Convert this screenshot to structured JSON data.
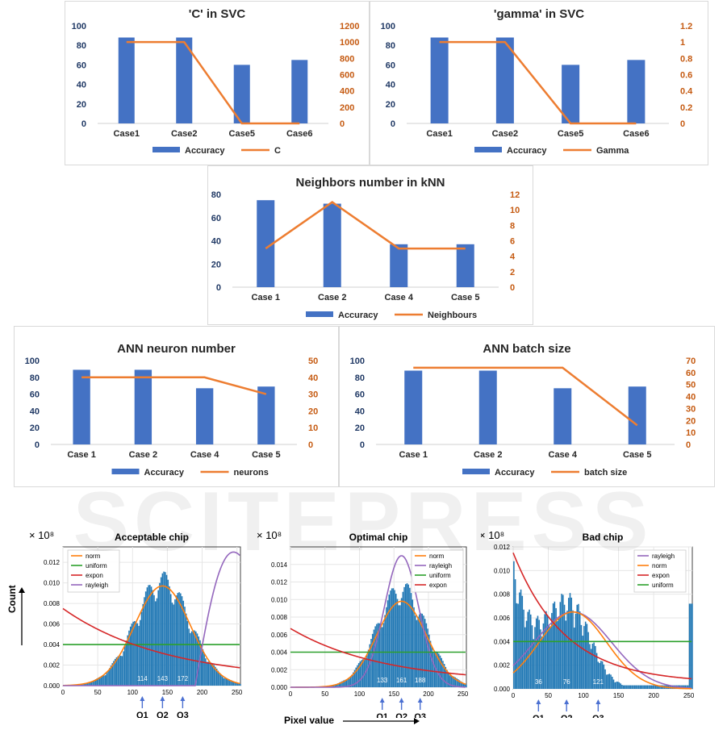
{
  "colors": {
    "bar": "#4472C4",
    "line": "#ED7D31",
    "left_axis": "#1F3864",
    "right_axis": "#C55A11",
    "hist": "#1f77b4"
  },
  "watermark": "SCITEPRESS",
  "common": {
    "count_label": "Count",
    "pixel_label": "Pixel value",
    "exp_label": "× 10⁸"
  },
  "chart_data": [
    {
      "type": "bar",
      "title": "'C' in SVC",
      "categories": [
        "Case1",
        "Case2",
        "Case5",
        "Case6"
      ],
      "series": [
        {
          "name": "Accuracy",
          "values": [
            88,
            88,
            60,
            65
          ],
          "axis": "left"
        },
        {
          "name": "C",
          "values": [
            1000,
            1000,
            0,
            0
          ],
          "axis": "right",
          "type": "line"
        }
      ],
      "ylim": [
        0,
        100
      ],
      "yticks": [
        0,
        20,
        40,
        60,
        80,
        100
      ],
      "y2lim": [
        0,
        1200
      ],
      "y2ticks": [
        0,
        200,
        400,
        600,
        800,
        1000,
        1200
      ]
    },
    {
      "type": "bar",
      "title": "'gamma' in SVC",
      "categories": [
        "Case1",
        "Case2",
        "Case5",
        "Case6"
      ],
      "series": [
        {
          "name": "Accuracy",
          "values": [
            88,
            88,
            60,
            65
          ],
          "axis": "left"
        },
        {
          "name": "Gamma",
          "values": [
            1,
            1,
            0,
            0
          ],
          "axis": "right",
          "type": "line"
        }
      ],
      "ylim": [
        0,
        100
      ],
      "yticks": [
        0,
        20,
        40,
        60,
        80,
        100
      ],
      "y2lim": [
        0,
        1.2
      ],
      "y2ticks": [
        "0",
        "0.2",
        "0.4",
        "0.6",
        "0.8",
        "1",
        "1.2"
      ]
    },
    {
      "type": "bar",
      "title": "Neighbors number in kNN",
      "categories": [
        "Case 1",
        "Case 2",
        "Case 4",
        "Case 5"
      ],
      "series": [
        {
          "name": "Accuracy",
          "values": [
            75,
            72,
            37,
            37
          ],
          "axis": "left"
        },
        {
          "name": "Neighbours",
          "values": [
            5,
            11,
            5,
            5
          ],
          "axis": "right",
          "type": "line"
        }
      ],
      "ylim": [
        0,
        80
      ],
      "yticks": [
        0,
        20,
        40,
        60,
        80
      ],
      "y2lim": [
        0,
        12
      ],
      "y2ticks": [
        0,
        2,
        4,
        6,
        8,
        10,
        12
      ]
    },
    {
      "type": "bar",
      "title": "ANN neuron number",
      "categories": [
        "Case 1",
        "Case 2",
        "Case 4",
        "Case 5"
      ],
      "series": [
        {
          "name": "Accuracy",
          "values": [
            89,
            89,
            67,
            69
          ],
          "axis": "left"
        },
        {
          "name": "neurons",
          "values": [
            40,
            40,
            40,
            30
          ],
          "axis": "right",
          "type": "line"
        }
      ],
      "ylim": [
        0,
        100
      ],
      "yticks": [
        0,
        20,
        40,
        60,
        80,
        100
      ],
      "y2lim": [
        0,
        50
      ],
      "y2ticks": [
        0,
        10,
        20,
        30,
        40,
        50
      ]
    },
    {
      "type": "bar",
      "title": "ANN batch size",
      "categories": [
        "Case 1",
        "Case 2",
        "Case 4",
        "Case 5"
      ],
      "series": [
        {
          "name": "Accuracy",
          "values": [
            88,
            88,
            67,
            69
          ],
          "axis": "left"
        },
        {
          "name": "batch size",
          "values": [
            64,
            64,
            64,
            16
          ],
          "axis": "right",
          "type": "line"
        }
      ],
      "ylim": [
        0,
        100
      ],
      "yticks": [
        0,
        20,
        40,
        60,
        80,
        100
      ],
      "y2lim": [
        0,
        70
      ],
      "y2ticks": [
        0,
        10,
        20,
        30,
        40,
        50,
        60,
        70
      ]
    },
    {
      "type": "area",
      "title": "Acceptable chip",
      "xlim": [
        0,
        255
      ],
      "ylim": [
        0,
        0.0135
      ],
      "xticks": [
        0,
        50,
        100,
        150,
        200,
        250
      ],
      "yticks": [
        "0.000",
        "0.002",
        "0.004",
        "0.006",
        "0.008",
        "0.010",
        "0.012"
      ],
      "legend": [
        "norm",
        "uniform",
        "expon",
        "rayleigh"
      ],
      "quartiles": [
        {
          "label": "Q1",
          "value": 114
        },
        {
          "label": "Q2",
          "value": 143
        },
        {
          "label": "Q3",
          "value": 172
        }
      ],
      "hist": {
        "type": "norm",
        "mean": 143,
        "sd": 40,
        "peak": 0.0105
      },
      "curves": [
        {
          "name": "norm",
          "kind": "norm",
          "mean": 143,
          "sd": 40,
          "peak": 0.0097
        },
        {
          "name": "uniform",
          "kind": "const",
          "value": 0.004
        },
        {
          "name": "expon",
          "kind": "exp",
          "a": 0.007,
          "b": 0.0068
        },
        {
          "name": "rayleigh",
          "kind": "ray",
          "start": 190,
          "peak": 0.013,
          "peakx": 245
        }
      ]
    },
    {
      "type": "area",
      "title": "Optimal chip",
      "xlim": [
        0,
        255
      ],
      "ylim": [
        0,
        0.016
      ],
      "xticks": [
        0,
        50,
        100,
        150,
        200,
        250
      ],
      "yticks": [
        "0.000",
        "0.002",
        "0.004",
        "0.006",
        "0.008",
        "0.010",
        "0.012",
        "0.014"
      ],
      "legend": [
        "norm",
        "rayleigh",
        "uniform",
        "expon"
      ],
      "quartiles": [
        {
          "label": "Q1",
          "value": 133
        },
        {
          "label": "Q2",
          "value": 161
        },
        {
          "label": "Q3",
          "value": 188
        }
      ],
      "hist": {
        "type": "norm",
        "mean": 161,
        "sd": 36,
        "peak": 0.0115
      },
      "curves": [
        {
          "name": "norm",
          "kind": "norm",
          "mean": 161,
          "sd": 36,
          "peak": 0.0098
        },
        {
          "name": "rayleigh",
          "kind": "norm",
          "mean": 161,
          "sd": 25,
          "peak": 0.015
        },
        {
          "name": "uniform",
          "kind": "const",
          "value": 0.004
        },
        {
          "name": "expon",
          "kind": "exp",
          "a": 0.0062,
          "b": 0.0075
        }
      ]
    },
    {
      "type": "area",
      "title": "Bad chip",
      "xlim": [
        0,
        255
      ],
      "ylim": [
        0,
        0.012
      ],
      "xticks": [
        0,
        50,
        100,
        150,
        200,
        250
      ],
      "yticks": [
        "0.000",
        "0.002",
        "0.004",
        "0.006",
        "0.008",
        "0.010",
        "0.012"
      ],
      "legend": [
        "rayleigh",
        "norm",
        "expon",
        "uniform"
      ],
      "quartiles": [
        {
          "label": "Q1",
          "value": 36
        },
        {
          "label": "Q2",
          "value": 76
        },
        {
          "label": "Q3",
          "value": 121
        }
      ],
      "hist": {
        "type": "bad"
      },
      "curves": [
        {
          "name": "rayleigh",
          "kind": "norm",
          "mean": 85,
          "sd": 55,
          "peak": 0.0065
        },
        {
          "name": "norm",
          "kind": "norm",
          "mean": 85,
          "sd": 48,
          "peak": 0.0065
        },
        {
          "name": "expon",
          "kind": "exp",
          "a": 0.011,
          "b": 0.0135
        },
        {
          "name": "uniform",
          "kind": "const",
          "value": 0.004
        }
      ]
    }
  ]
}
